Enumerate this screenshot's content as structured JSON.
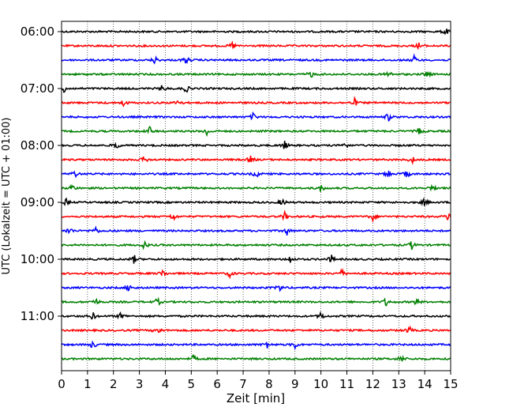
{
  "chart_data": {
    "type": "line",
    "title": "",
    "xlabel": "Zeit  [min]",
    "ylabel": "UTC (Lokalzeit = UTC + 01:00)",
    "xlim": [
      0,
      15
    ],
    "x_ticks": [
      0,
      1,
      2,
      3,
      4,
      5,
      6,
      7,
      8,
      9,
      10,
      11,
      12,
      13,
      14,
      15
    ],
    "x_tick_labels": [
      "0",
      "1",
      "2",
      "3",
      "4",
      "5",
      "6",
      "7",
      "8",
      "9",
      "10",
      "11",
      "12",
      "13",
      "14",
      "15"
    ],
    "y_tick_labels": [
      "06:00",
      "07:00",
      "08:00",
      "09:00",
      "10:00",
      "11:00"
    ],
    "y_tick_traces": [
      0,
      4,
      8,
      12,
      16,
      20
    ],
    "minutes_per_trace": 15,
    "vertical_grid": "dotted",
    "color_cycle": [
      "#000000",
      "#ff0000",
      "#0000ff",
      "#008000"
    ],
    "traces": [
      {
        "start": "06:00",
        "color": "#000000",
        "events_min": [
          14.8
        ]
      },
      {
        "start": "06:15",
        "color": "#ff0000",
        "events_min": [
          6.6,
          13.8
        ]
      },
      {
        "start": "06:30",
        "color": "#0000ff",
        "events_min": [
          3.6,
          4.8,
          13.6
        ]
      },
      {
        "start": "06:45",
        "color": "#008000",
        "events_min": [
          9.6,
          12.6,
          14.1
        ]
      },
      {
        "start": "07:00",
        "color": "#000000",
        "events_min": [
          0.1,
          3.9,
          4.8
        ]
      },
      {
        "start": "07:15",
        "color": "#ff0000",
        "events_min": [
          2.4,
          4.5,
          11.3
        ]
      },
      {
        "start": "07:30",
        "color": "#0000ff",
        "events_min": [
          7.4,
          12.6
        ]
      },
      {
        "start": "07:45",
        "color": "#008000",
        "events_min": [
          3.4,
          5.6,
          13.8
        ]
      },
      {
        "start": "08:00",
        "color": "#000000",
        "events_min": [
          2.1,
          8.6,
          10.9
        ]
      },
      {
        "start": "08:15",
        "color": "#ff0000",
        "events_min": [
          3.2,
          7.3,
          13.5
        ]
      },
      {
        "start": "08:30",
        "color": "#0000ff",
        "events_min": [
          0.5,
          7.5,
          12.6,
          13.3
        ]
      },
      {
        "start": "08:45",
        "color": "#008000",
        "events_min": [
          0.4,
          10.0,
          14.3
        ]
      },
      {
        "start": "09:00",
        "color": "#000000",
        "events_min": [
          0.2,
          8.5,
          14.0
        ]
      },
      {
        "start": "09:15",
        "color": "#ff0000",
        "events_min": [
          4.3,
          8.6,
          12.0,
          14.9
        ]
      },
      {
        "start": "09:30",
        "color": "#0000ff",
        "events_min": [
          0.3,
          1.3,
          8.7
        ]
      },
      {
        "start": "09:45",
        "color": "#008000",
        "events_min": [
          3.2,
          13.5
        ]
      },
      {
        "start": "10:00",
        "color": "#000000",
        "events_min": [
          2.8,
          8.8,
          10.4
        ]
      },
      {
        "start": "10:15",
        "color": "#ff0000",
        "events_min": [
          3.9,
          6.5,
          10.8
        ]
      },
      {
        "start": "10:30",
        "color": "#0000ff",
        "events_min": [
          2.6,
          8.4
        ]
      },
      {
        "start": "10:45",
        "color": "#008000",
        "events_min": [
          1.3,
          3.7,
          12.5,
          13.7
        ]
      },
      {
        "start": "11:00",
        "color": "#000000",
        "events_min": [
          1.2,
          2.3,
          10.0
        ]
      },
      {
        "start": "11:15",
        "color": "#ff0000",
        "events_min": [
          3.7,
          13.4
        ]
      },
      {
        "start": "11:30",
        "color": "#0000ff",
        "events_min": [
          1.2,
          7.9,
          9.0
        ]
      },
      {
        "start": "11:45",
        "color": "#008000",
        "events_min": [
          5.1,
          13.1
        ]
      }
    ]
  }
}
